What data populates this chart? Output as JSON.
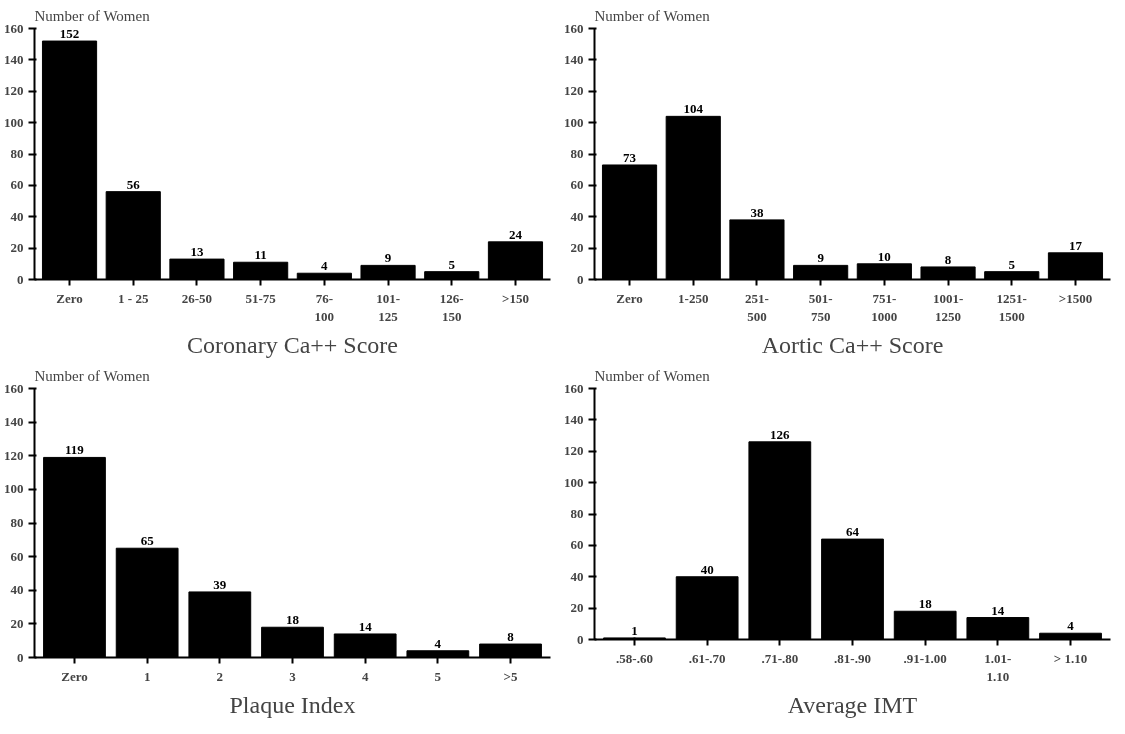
{
  "chart_data": [
    {
      "type": "bar",
      "xlabel": "Coronary Ca++ Score",
      "ylabel": "Number of Women",
      "categories": [
        "Zero",
        "1 - 25",
        "26-50",
        "51-75",
        "76-\n100",
        "101-\n125",
        "126-\n150",
        ">150"
      ],
      "values": [
        152,
        56,
        13,
        11,
        4,
        9,
        5,
        24
      ],
      "color": "#000000",
      "ylim": [
        0,
        160
      ],
      "yticks": [
        0,
        20,
        40,
        60,
        80,
        100,
        120,
        140,
        160
      ],
      "grid": false,
      "data_labels": true
    },
    {
      "type": "bar",
      "xlabel": "Aortic Ca++ Score",
      "ylabel": "Number of Women",
      "categories": [
        "Zero",
        "1-250",
        "251-\n500",
        "501-\n750",
        "751-\n1000",
        "1001-\n1250",
        "1251-\n1500",
        ">1500"
      ],
      "values": [
        73,
        104,
        38,
        9,
        10,
        8,
        5,
        17
      ],
      "color": "#000000",
      "ylim": [
        0,
        160
      ],
      "yticks": [
        0,
        20,
        40,
        60,
        80,
        100,
        120,
        140,
        160
      ],
      "grid": false,
      "data_labels": true
    },
    {
      "type": "bar",
      "xlabel": "Plaque Index",
      "ylabel": "Number of Women",
      "categories": [
        "Zero",
        "1",
        "2",
        "3",
        "4",
        "5",
        ">5"
      ],
      "values": [
        119,
        65,
        39,
        18,
        14,
        4,
        8
      ],
      "color": "#000000",
      "ylim": [
        0,
        160
      ],
      "yticks": [
        0,
        20,
        40,
        60,
        80,
        100,
        120,
        140,
        160
      ],
      "grid": false,
      "data_labels": true
    },
    {
      "type": "bar",
      "xlabel": "Average IMT",
      "ylabel": "Number of Women",
      "categories": [
        ".58-.60",
        ".61-.70",
        ".71-.80",
        ".81-.90",
        ".91-1.00",
        "1.01-\n1.10",
        "> 1.10"
      ],
      "values": [
        1,
        40,
        126,
        64,
        18,
        14,
        4
      ],
      "color": "#000000",
      "ylim": [
        0,
        160
      ],
      "yticks": [
        0,
        20,
        40,
        60,
        80,
        100,
        120,
        140,
        160
      ],
      "grid": false,
      "data_labels": true
    }
  ]
}
